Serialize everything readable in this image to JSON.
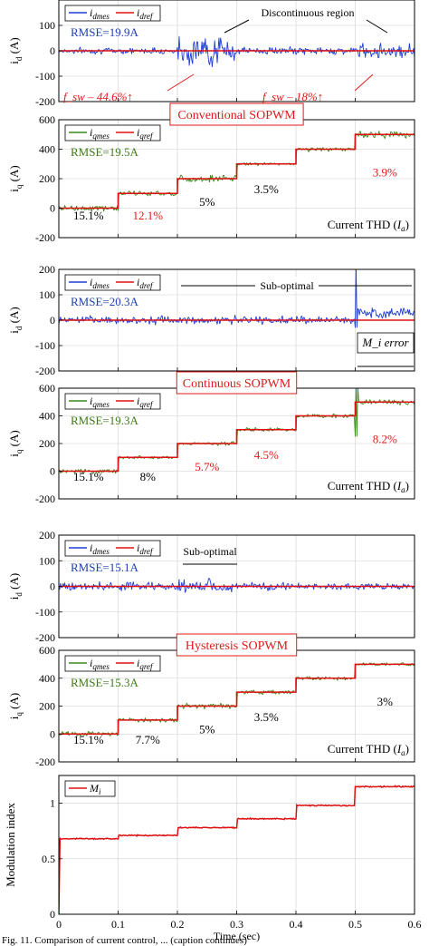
{
  "figure_caption": "Fig. 11. Comparison of current control, ... (caption continues)",
  "colors": {
    "measured_d": "#1f3fd6",
    "measured_q": "#3d8a1c",
    "reference": "#e01010",
    "annotation_red": "#e01a1a",
    "text_blue": "#1f3fb0",
    "text_green": "#3d7a18",
    "frame": "#000000",
    "grid": "#cfcfcf"
  },
  "x_axis": {
    "label": "Time (sec)",
    "ticks": [
      "0",
      "0.1",
      "0.2",
      "0.3",
      "0.4",
      "0.5",
      "0.6"
    ],
    "xlim": [
      0,
      0.6
    ]
  },
  "steps": {
    "times": [
      0,
      0.1,
      0.2,
      0.3,
      0.4,
      0.5,
      0.6
    ],
    "iq_ref": [
      0,
      100,
      200,
      300,
      400,
      500
    ]
  },
  "chart_data": [
    {
      "id": "p1",
      "type": "line",
      "ylabel": "i_d (A)",
      "ylim": [
        -200,
        200
      ],
      "yticks": [
        "-200",
        "-100",
        "0",
        "100",
        "200"
      ],
      "series": [
        {
          "name": "i_dmes",
          "kind": "noise",
          "base": 0,
          "amplitude": [
            18,
            18,
            55,
            22,
            20,
            40
          ]
        },
        {
          "name": "i_dref",
          "kind": "ref",
          "values": [
            0,
            0,
            0,
            0,
            0,
            0
          ]
        }
      ],
      "rmse": "RMSE=19.9A",
      "annotations": [
        {
          "text": "Discontinuous region"
        },
        {
          "text": "f_sw – 44.6%↑"
        },
        {
          "text": "f_sw – 18%↑"
        }
      ]
    },
    {
      "id": "p2",
      "type": "line",
      "ylabel": "i_q (A)",
      "ylim": [
        -200,
        600
      ],
      "yticks": [
        "-200",
        "0",
        "200",
        "400",
        "600"
      ],
      "series": [
        {
          "name": "i_qmes",
          "kind": "noise_steps",
          "amplitude": [
            30,
            25,
            40,
            15,
            22,
            35
          ]
        },
        {
          "name": "i_qref",
          "kind": "ref_steps"
        }
      ],
      "rmse": "RMSE=19.5A",
      "title": "Conventional SOPWM",
      "thd": [
        "15.1%",
        "12.1%",
        "5%",
        "3.5%",
        "3.9%"
      ],
      "thd_label": "Current THD"
    },
    {
      "id": "p3",
      "type": "line",
      "ylabel": "i_d (A)",
      "ylim": [
        -200,
        200
      ],
      "yticks": [
        "-200",
        "-100",
        "0",
        "100",
        "200"
      ],
      "series": [
        {
          "name": "i_dmes",
          "kind": "noise",
          "base": [
            0,
            0,
            0,
            0,
            0,
            30
          ],
          "amplitude": [
            22,
            22,
            22,
            22,
            22,
            30
          ]
        },
        {
          "name": "i_dref",
          "kind": "ref",
          "values": [
            0,
            0,
            0,
            0,
            0,
            0
          ]
        }
      ],
      "rmse": "RMSE=20.3A",
      "annotations": [
        {
          "text": "Sub-optimal"
        },
        {
          "text": "M_i error"
        }
      ]
    },
    {
      "id": "p4",
      "type": "line",
      "ylabel": "i_q (A)",
      "ylim": [
        -200,
        600
      ],
      "yticks": [
        "-200",
        "0",
        "200",
        "400",
        "600"
      ],
      "series": [
        {
          "name": "i_qmes",
          "kind": "noise_steps",
          "amplitude": [
            25,
            20,
            20,
            20,
            22,
            30
          ]
        },
        {
          "name": "i_qref",
          "kind": "ref_steps"
        }
      ],
      "rmse": "RMSE=19.3A",
      "title": "Continuous SOPWM",
      "thd": [
        "15.1%",
        "8%",
        "5.7%",
        "4.5%",
        "8.2%"
      ],
      "thd_label": "Current THD"
    },
    {
      "id": "p5",
      "type": "line",
      "ylabel": "i_d (A)",
      "ylim": [
        -200,
        200
      ],
      "yticks": [
        "-200",
        "-100",
        "0",
        "100",
        "200"
      ],
      "series": [
        {
          "name": "i_dmes",
          "kind": "noise",
          "base": 0,
          "amplitude": [
            25,
            25,
            38,
            22,
            18,
            18
          ]
        },
        {
          "name": "i_dref",
          "kind": "ref",
          "values": [
            0,
            0,
            0,
            0,
            0,
            0
          ]
        }
      ],
      "rmse": "RMSE=15.1A",
      "annotations": [
        {
          "text": "Sub-optimal"
        }
      ]
    },
    {
      "id": "p6",
      "type": "line",
      "ylabel": "i_q (A)",
      "ylim": [
        -200,
        600
      ],
      "yticks": [
        "-200",
        "0",
        "200",
        "400",
        "600"
      ],
      "series": [
        {
          "name": "i_qmes",
          "kind": "noise_steps",
          "amplitude": [
            25,
            22,
            28,
            22,
            22,
            18
          ]
        },
        {
          "name": "i_qref",
          "kind": "ref_steps"
        }
      ],
      "rmse": "RMSE=15.3A",
      "title": "Hysteresis SOPWM",
      "thd": [
        "15.1%",
        "7.7%",
        "5%",
        "3.5%",
        "3%"
      ],
      "thd_label": "Current THD"
    },
    {
      "id": "p7",
      "type": "line",
      "ylabel": "Modulation index",
      "ylim": [
        0,
        1.25
      ],
      "yticks": [
        "0",
        "0.5",
        "1"
      ],
      "series": [
        {
          "name": "M_i",
          "kind": "mi_steps",
          "values": [
            0.68,
            0.71,
            0.78,
            0.86,
            0.98,
            1.15
          ]
        }
      ]
    }
  ]
}
